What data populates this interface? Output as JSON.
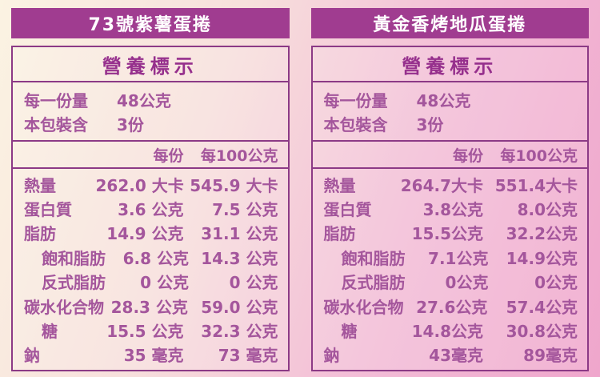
{
  "page": {
    "colors": {
      "title_bar_bg": "#A03C90",
      "title_text": "#FFFFFF",
      "table_border": "#8C3A86",
      "text_color": "#A4569C",
      "header_text": "#96308D",
      "bg_left": "#FBF3E2",
      "bg_right": "#EFA6CC"
    }
  },
  "panels": [
    {
      "title": "73號紫薯蛋捲",
      "table": {
        "header": "營養標示",
        "serving": [
          {
            "label": "每一份量",
            "value": "48公克"
          },
          {
            "label": "本包裝含",
            "value": "3份"
          }
        ],
        "columns": [
          "每份",
          "每100公克"
        ],
        "rows": [
          {
            "label": "熱量",
            "indent": false,
            "per_serving": "262.0 大卡",
            "per_100g": "545.9 大卡"
          },
          {
            "label": "蛋白質",
            "indent": false,
            "per_serving": "3.6 公克",
            "per_100g": "7.5 公克"
          },
          {
            "label": "脂肪",
            "indent": false,
            "per_serving": "14.9 公克",
            "per_100g": "31.1 公克"
          },
          {
            "label": "飽和脂肪",
            "indent": true,
            "per_serving": "6.8 公克",
            "per_100g": "14.3 公克"
          },
          {
            "label": "反式脂肪",
            "indent": true,
            "per_serving": "0 公克",
            "per_100g": "0 公克"
          },
          {
            "label": "碳水化合物",
            "indent": false,
            "per_serving": "28.3 公克",
            "per_100g": "59.0 公克"
          },
          {
            "label": "糖",
            "indent": true,
            "per_serving": "15.5 公克",
            "per_100g": "32.3 公克"
          },
          {
            "label": "鈉",
            "indent": false,
            "per_serving": "35 毫克",
            "per_100g": "73 毫克"
          }
        ]
      }
    },
    {
      "title": "黃金香烤地瓜蛋捲",
      "table": {
        "header": "營養標示",
        "serving": [
          {
            "label": "每一份量",
            "value": "48公克"
          },
          {
            "label": "本包裝含",
            "value": "3份"
          }
        ],
        "columns": [
          "每份",
          "每100公克"
        ],
        "rows": [
          {
            "label": "熱量",
            "indent": false,
            "per_serving": "264.7大卡",
            "per_100g": "551.4大卡"
          },
          {
            "label": "蛋白質",
            "indent": false,
            "per_serving": "3.8公克",
            "per_100g": "8.0公克"
          },
          {
            "label": "脂肪",
            "indent": false,
            "per_serving": "15.5公克",
            "per_100g": "32.2公克"
          },
          {
            "label": "飽和脂肪",
            "indent": true,
            "per_serving": "7.1公克",
            "per_100g": "14.9公克"
          },
          {
            "label": "反式脂肪",
            "indent": true,
            "per_serving": "0公克",
            "per_100g": "0公克"
          },
          {
            "label": "碳水化合物",
            "indent": false,
            "per_serving": "27.6公克",
            "per_100g": "57.4公克"
          },
          {
            "label": "糖",
            "indent": true,
            "per_serving": "14.8公克",
            "per_100g": "30.8公克"
          },
          {
            "label": "鈉",
            "indent": false,
            "per_serving": "43毫克",
            "per_100g": "89毫克"
          }
        ]
      }
    }
  ]
}
